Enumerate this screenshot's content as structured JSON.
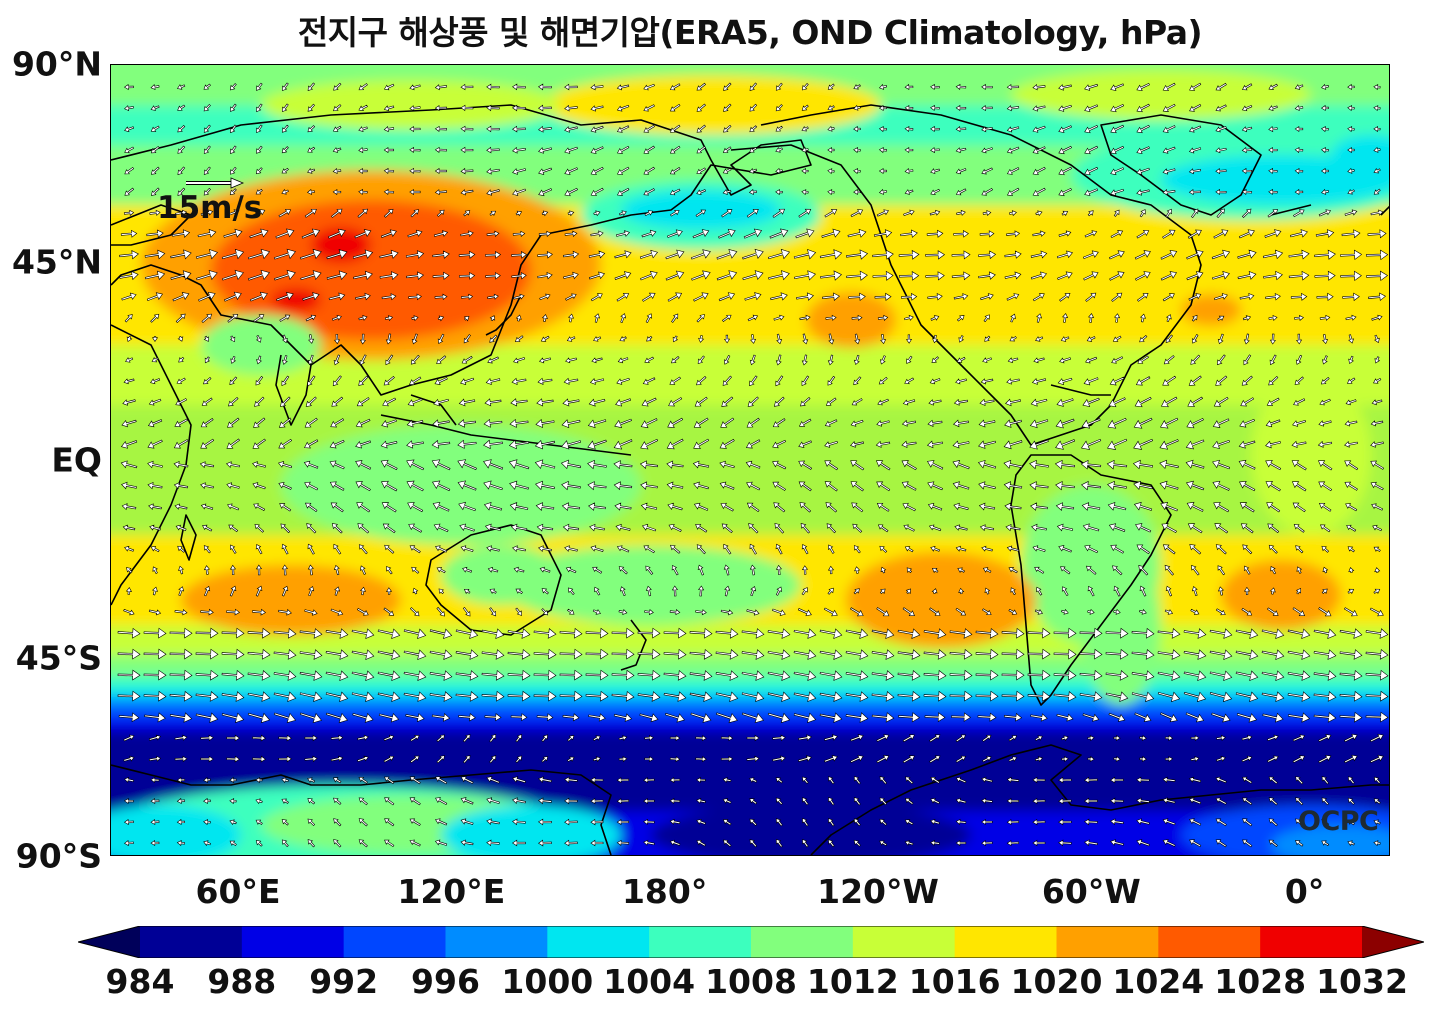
{
  "title": "전지구 해상풍 및 해면기압(ERA5, OND Climatology, hPa)",
  "map": {
    "lat_labels": [
      {
        "lat": 90,
        "text": "90°N"
      },
      {
        "lat": 45,
        "text": "45°N"
      },
      {
        "lat": 0,
        "text": "EQ"
      },
      {
        "lat": -45,
        "text": "45°S"
      },
      {
        "lat": -90,
        "text": "90°S"
      }
    ],
    "lon_labels": [
      {
        "lon": 60,
        "text": "60°E"
      },
      {
        "lon": 120,
        "text": "120°E"
      },
      {
        "lon": 180,
        "text": "180°"
      },
      {
        "lon": 240,
        "text": "120°W"
      },
      {
        "lon": 300,
        "text": "60°W"
      },
      {
        "lon": 360,
        "text": "0°"
      }
    ],
    "lon_range": [
      24,
      384
    ],
    "lat_range": [
      -90,
      90
    ],
    "reference_vector": {
      "label": "15m/s",
      "speed": 15
    },
    "watermark": "OCPC"
  },
  "colorbar": {
    "levels": [
      984,
      988,
      992,
      996,
      1000,
      1004,
      1008,
      1012,
      1016,
      1020,
      1024,
      1028,
      1032
    ],
    "labels": [
      "984",
      "988",
      "992",
      "996",
      "1000",
      "1004",
      "1008",
      "1012",
      "1016",
      "1020",
      "1024",
      "1028",
      "1032"
    ],
    "colors": [
      "#000096",
      "#0000e6",
      "#0046ff",
      "#008cff",
      "#00e6f0",
      "#3cffbe",
      "#82ff7d",
      "#c8ff37",
      "#ffe600",
      "#ffa000",
      "#ff5a00",
      "#f00000"
    ],
    "under_color": "#00005a",
    "over_color": "#8c0000"
  }
}
